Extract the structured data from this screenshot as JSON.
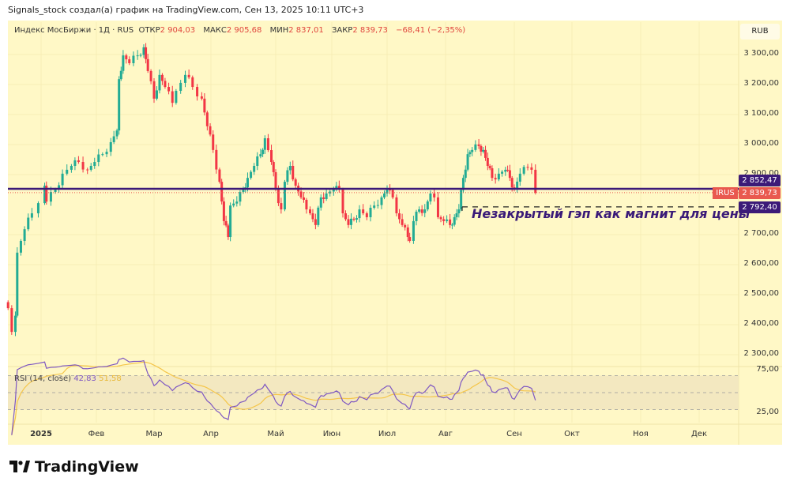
{
  "caption": "Signals_stock создал(а) график на TradingView.com, Сен 13, 2025 10:11 UTC+3",
  "legend": {
    "symbol": "Индекс МосБиржи · 1Д · RUS",
    "open_label": "ОТКР",
    "open": "2 904,03",
    "high_label": "МАКС",
    "high": "2 905,68",
    "low_label": "МИН",
    "low": "2 837,01",
    "close_label": "ЗАКР",
    "close": "2 839,73",
    "change": "−68,41 (−2,35%)"
  },
  "currency": "RUB",
  "price_axis": [
    "3 300,00",
    "3 200,00",
    "3 100,00",
    "3 000,00",
    "2 900,00",
    "2 700,00",
    "2 600,00",
    "2 500,00",
    "2 400,00",
    "2 300,00"
  ],
  "tags": {
    "level": "2 852,47",
    "symbol": "IRUS",
    "last": "2 839,73",
    "gap": "2 792,40"
  },
  "annotation": "Незакрытый гэп как магнит для цены",
  "months": [
    "2025",
    "Фев",
    "Мар",
    "Апр",
    "Май",
    "Июн",
    "Июл",
    "Авг",
    "Сен",
    "Окт",
    "Ноя",
    "Дек"
  ],
  "rsi": {
    "label": "RSI (14, close)",
    "value": "42,83",
    "ma_value": "51,58",
    "axis": [
      "75,00",
      "25,00"
    ]
  },
  "brand": "TradingView",
  "colors": {
    "up": "#22ab94",
    "down": "#f23645",
    "level": "#3c1a78",
    "rsi": "#7e57c2",
    "rsi_ma": "#f5c64a",
    "background": "#fff8c6"
  },
  "chart_data": {
    "type": "candlestick",
    "levels": {
      "horizontal": 2852.47,
      "gap": 2792.4,
      "last_close": 2839.73
    },
    "ylim": [
      2300,
      3350
    ],
    "yticks": [
      3300,
      3200,
      3100,
      3000,
      2900,
      2700,
      2600,
      2500,
      2400,
      2300
    ],
    "closes": [
      [
        "2024-12-14",
        2455
      ],
      [
        "2024-12-16",
        2376
      ],
      [
        "2024-12-18",
        2430
      ],
      [
        "2024-12-19",
        2640
      ],
      [
        "2024-12-23",
        2718
      ],
      [
        "2024-12-27",
        2771
      ],
      [
        "2025-01-03",
        2863
      ],
      [
        "2025-01-04",
        2810
      ],
      [
        "2025-01-09",
        2850
      ],
      [
        "2025-01-13",
        2903
      ],
      [
        "2025-01-18",
        2929
      ],
      [
        "2025-01-22",
        2942
      ],
      [
        "2025-01-27",
        2916
      ],
      [
        "2025-01-31",
        2942
      ],
      [
        "2025-02-04",
        2968
      ],
      [
        "2025-02-08",
        3008
      ],
      [
        "2025-02-11",
        3047
      ],
      [
        "2025-02-12",
        3218
      ],
      [
        "2025-02-14",
        3297
      ],
      [
        "2025-02-17",
        3271
      ],
      [
        "2025-02-21",
        3297
      ],
      [
        "2025-02-24",
        3324
      ],
      [
        "2025-02-26",
        3245
      ],
      [
        "2025-03-01",
        3153
      ],
      [
        "2025-03-04",
        3232
      ],
      [
        "2025-03-07",
        3192
      ],
      [
        "2025-03-11",
        3139
      ],
      [
        "2025-03-13",
        3179
      ],
      [
        "2025-03-18",
        3232
      ],
      [
        "2025-03-22",
        3192
      ],
      [
        "2025-03-27",
        3153
      ],
      [
        "2025-03-30",
        3061
      ],
      [
        "2025-04-02",
        2982
      ],
      [
        "2025-04-05",
        2876
      ],
      [
        "2025-04-07",
        2745
      ],
      [
        "2025-04-09",
        2692
      ],
      [
        "2025-04-10",
        2797
      ],
      [
        "2025-04-13",
        2810
      ],
      [
        "2025-04-16",
        2850
      ],
      [
        "2025-04-18",
        2889
      ],
      [
        "2025-04-21",
        2929
      ],
      [
        "2025-04-24",
        2968
      ],
      [
        "2025-04-26",
        3021
      ],
      [
        "2025-04-29",
        2942
      ],
      [
        "2025-05-01",
        2850
      ],
      [
        "2025-05-04",
        2784
      ],
      [
        "2025-05-06",
        2876
      ],
      [
        "2025-05-09",
        2929
      ],
      [
        "2025-05-12",
        2863
      ],
      [
        "2025-05-15",
        2824
      ],
      [
        "2025-05-18",
        2784
      ],
      [
        "2025-05-20",
        2771
      ],
      [
        "2025-05-23",
        2732
      ],
      [
        "2025-05-26",
        2824
      ],
      [
        "2025-05-29",
        2837
      ],
      [
        "2025-06-02",
        2850
      ],
      [
        "2025-06-05",
        2850
      ],
      [
        "2025-06-07",
        2771
      ],
      [
        "2025-06-10",
        2732
      ],
      [
        "2025-06-13",
        2750
      ],
      [
        "2025-06-16",
        2784
      ],
      [
        "2025-06-20",
        2758
      ],
      [
        "2025-06-24",
        2797
      ],
      [
        "2025-06-28",
        2824
      ],
      [
        "2025-07-01",
        2850
      ],
      [
        "2025-07-04",
        2824
      ],
      [
        "2025-07-06",
        2771
      ],
      [
        "2025-07-09",
        2732
      ],
      [
        "2025-07-12",
        2692
      ],
      [
        "2025-07-13",
        2679
      ],
      [
        "2025-07-15",
        2745
      ],
      [
        "2025-07-18",
        2784
      ],
      [
        "2025-07-21",
        2784
      ],
      [
        "2025-07-24",
        2837
      ],
      [
        "2025-07-26",
        2824
      ],
      [
        "2025-07-28",
        2758
      ],
      [
        "2025-07-31",
        2745
      ],
      [
        "2025-08-03",
        2732
      ],
      [
        "2025-08-05",
        2758
      ],
      [
        "2025-08-07",
        2784
      ],
      [
        "2025-08-09",
        2889
      ],
      [
        "2025-08-11",
        2968
      ],
      [
        "2025-08-13",
        2982
      ],
      [
        "2025-08-16",
        2995
      ],
      [
        "2025-08-18",
        2982
      ],
      [
        "2025-08-20",
        2929
      ],
      [
        "2025-08-22",
        2889
      ],
      [
        "2025-08-25",
        2903
      ],
      [
        "2025-08-28",
        2916
      ],
      [
        "2025-08-30",
        2889
      ],
      [
        "2025-09-01",
        2850
      ],
      [
        "2025-09-04",
        2903
      ],
      [
        "2025-09-08",
        2924
      ],
      [
        "2025-09-10",
        2916
      ],
      [
        "2025-09-12",
        2839.73
      ]
    ]
  }
}
